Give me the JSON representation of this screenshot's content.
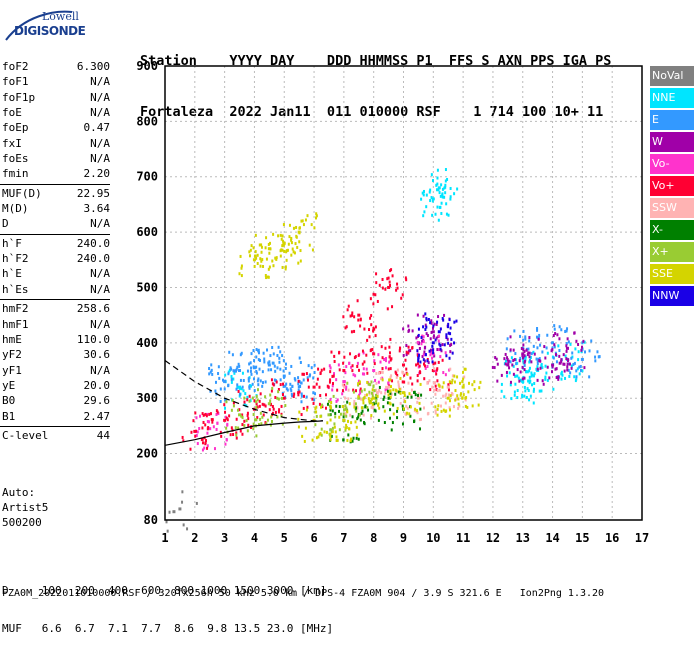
{
  "logo": {
    "line1": "Lowell",
    "line2": "DIGISONDE"
  },
  "header": {
    "row1": "Station    YYYY DAY    DDD HHMMSS P1  FFS S AXN PPS IGA PS",
    "row2": "Fortaleza  2022 Jan11  011 010000 RSF    1 714 100 10+ 11"
  },
  "params_groups": [
    [
      {
        "label": "foF2",
        "value": "6.300"
      },
      {
        "label": "foF1",
        "value": "N/A"
      },
      {
        "label": "foF1p",
        "value": "N/A"
      },
      {
        "label": "foE",
        "value": "N/A"
      },
      {
        "label": "foEp",
        "value": "0.47"
      },
      {
        "label": "fxI",
        "value": "N/A"
      },
      {
        "label": "foEs",
        "value": "N/A"
      },
      {
        "label": "fmin",
        "value": "2.20"
      }
    ],
    [
      {
        "label": "MUF(D)",
        "value": "22.95"
      },
      {
        "label": "M(D)",
        "value": "3.64"
      },
      {
        "label": "D",
        "value": "N/A"
      }
    ],
    [
      {
        "label": "h`F",
        "value": "240.0"
      },
      {
        "label": "h`F2",
        "value": "240.0"
      },
      {
        "label": "h`E",
        "value": "N/A"
      },
      {
        "label": "h`Es",
        "value": "N/A"
      }
    ],
    [
      {
        "label": "hmF2",
        "value": "258.6"
      },
      {
        "label": "hmF1",
        "value": "N/A"
      },
      {
        "label": "hmE",
        "value": "110.0"
      },
      {
        "label": "yF2",
        "value": "30.6"
      },
      {
        "label": "yF1",
        "value": "N/A"
      },
      {
        "label": "yE",
        "value": "20.0"
      },
      {
        "label": "B0",
        "value": "29.6"
      },
      {
        "label": "B1",
        "value": "2.47"
      }
    ],
    [
      {
        "label": "C-level",
        "value": "44"
      }
    ]
  ],
  "auto": {
    "line1": "Auto:",
    "line2": "Artist5",
    "line3": "500200"
  },
  "legend": [
    {
      "label": "NoVal",
      "color": "#808080"
    },
    {
      "label": "NNE",
      "color": "#00e5ff"
    },
    {
      "label": "E",
      "color": "#3399ff"
    },
    {
      "label": "W",
      "color": "#a000a8"
    },
    {
      "label": "Vo-",
      "color": "#ff33cc"
    },
    {
      "label": "Vo+",
      "color": "#ff0033"
    },
    {
      "label": "SSW",
      "color": "#ffb3b3"
    },
    {
      "label": "X-",
      "color": "#008000"
    },
    {
      "label": "X+",
      "color": "#99cc33"
    },
    {
      "label": "SSE",
      "color": "#d4d400"
    },
    {
      "label": "NNW",
      "color": "#1a00e6"
    }
  ],
  "footer": {
    "row1": "D     100  200  400  600  800 1000 1500 3000 [km]",
    "row2": "MUF   6.6  6.7  7.1  7.7  8.6  9.8 13.5 23.0 [MHz]",
    "row3": "FZA0M_2022011010000.RSF / 320fx256h 50 kHz 5.0 km / DPS-4 FZA0M 904 / 3.9 S 321.6 E   Ion2Png 1.3.20"
  },
  "chart_data": {
    "type": "scatter",
    "title": "",
    "xlabel": "",
    "ylabel": "",
    "xlim": [
      1,
      17
    ],
    "ylim": [
      80,
      900
    ],
    "x_ticks": [
      1,
      2,
      3,
      4,
      5,
      6,
      7,
      8,
      9,
      10,
      11,
      12,
      13,
      14,
      15,
      16,
      17
    ],
    "y_ticks": [
      80,
      200,
      300,
      400,
      500,
      600,
      700,
      800,
      900
    ],
    "grid": true,
    "legend_position": "right",
    "traces": [
      {
        "name": "profile_lower",
        "style": "solid",
        "x": [
          1.0,
          2.0,
          3.0,
          4.0,
          5.0,
          5.5,
          6.0,
          6.3
        ],
        "y": [
          215,
          225,
          238,
          250,
          255,
          257,
          258,
          259
        ]
      },
      {
        "name": "profile_upper",
        "style": "dashed",
        "x": [
          1.0,
          2.0,
          3.0,
          4.0,
          5.0,
          6.0,
          6.3
        ],
        "y": [
          368,
          330,
          300,
          280,
          265,
          259,
          259
        ]
      }
    ],
    "series": [
      {
        "name": "NNE",
        "points": [
          [
            10.0,
            660
          ],
          [
            10.2,
            680
          ],
          [
            13.0,
            330
          ],
          [
            13.5,
            350
          ],
          [
            14.5,
            370
          ],
          [
            3.5,
            320
          ],
          [
            12.8,
            340
          ]
        ]
      },
      {
        "name": "E",
        "points": [
          [
            3.0,
            330
          ],
          [
            3.5,
            350
          ],
          [
            4.0,
            355
          ],
          [
            4.5,
            360
          ],
          [
            5.0,
            340
          ],
          [
            5.5,
            330
          ],
          [
            13.0,
            390
          ],
          [
            14.0,
            400
          ],
          [
            15.0,
            370
          ]
        ]
      },
      {
        "name": "W",
        "points": [
          [
            9.5,
            400
          ],
          [
            10.0,
            420
          ],
          [
            13.0,
            380
          ],
          [
            14.0,
            360
          ],
          [
            14.5,
            390
          ],
          [
            12.5,
            360
          ]
        ]
      },
      {
        "name": "Vo-",
        "points": [
          [
            7.0,
            330
          ],
          [
            8.0,
            350
          ],
          [
            10.0,
            380
          ],
          [
            2.5,
            245
          ]
        ]
      },
      {
        "name": "Vo+",
        "points": [
          [
            2.0,
            240
          ],
          [
            3.0,
            260
          ],
          [
            4.0,
            280
          ],
          [
            5.0,
            300
          ],
          [
            6.0,
            320
          ],
          [
            7.0,
            350
          ],
          [
            8.0,
            380
          ],
          [
            9.0,
            360
          ],
          [
            10.0,
            350
          ],
          [
            7.5,
            450
          ],
          [
            8.5,
            500
          ]
        ]
      },
      {
        "name": "SSW",
        "points": [
          [
            7.5,
            300
          ],
          [
            8.5,
            320
          ],
          [
            9.5,
            300
          ],
          [
            10.5,
            320
          ]
        ]
      },
      {
        "name": "X-",
        "points": [
          [
            7.0,
            260
          ],
          [
            8.0,
            290
          ],
          [
            9.0,
            280
          ]
        ]
      },
      {
        "name": "X+",
        "points": [
          [
            3.5,
            270
          ],
          [
            4.5,
            290
          ],
          [
            6.5,
            270
          ],
          [
            7.5,
            300
          ]
        ]
      },
      {
        "name": "SSE",
        "points": [
          [
            4.0,
            550
          ],
          [
            4.5,
            570
          ],
          [
            5.0,
            580
          ],
          [
            5.5,
            600
          ],
          [
            6.0,
            260
          ],
          [
            7.0,
            260
          ],
          [
            8.0,
            300
          ],
          [
            9.0,
            310
          ],
          [
            10.5,
            300
          ],
          [
            11.0,
            320
          ]
        ]
      },
      {
        "name": "NNW",
        "points": [
          [
            10.0,
            400
          ],
          [
            10.2,
            420
          ]
        ]
      },
      {
        "name": "NoVal",
        "points": [
          [
            1.3,
            95
          ],
          [
            1.5,
            100
          ]
        ]
      }
    ]
  }
}
